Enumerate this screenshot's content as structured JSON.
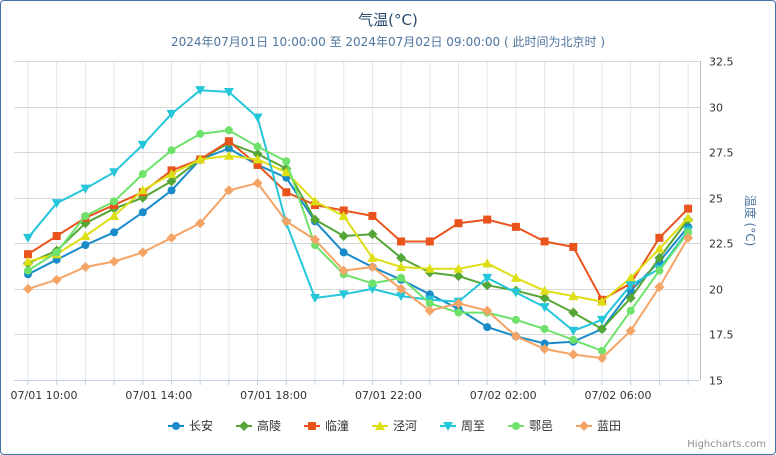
{
  "chart_data": {
    "type": "line",
    "title": "气温(°C)",
    "subtitle": "2024年07月01日 10:00:00 至 2024年07月02日 09:00:00 ( 此时间为北京时 )",
    "ylabel": "温度 (°C)",
    "credits": "Highcharts.com",
    "ylim": [
      15,
      32.5
    ],
    "y_ticks": [
      "15",
      "17.5",
      "20",
      "22.5",
      "25",
      "27.5",
      "30",
      "32.5"
    ],
    "x": [
      "07/01 10:00",
      "07/01 11:00",
      "07/01 12:00",
      "07/01 13:00",
      "07/01 14:00",
      "07/01 15:00",
      "07/01 16:00",
      "07/01 17:00",
      "07/01 18:00",
      "07/01 19:00",
      "07/01 20:00",
      "07/01 21:00",
      "07/01 22:00",
      "07/01 23:00",
      "07/02 00:00",
      "07/02 01:00",
      "07/02 02:00",
      "07/02 03:00",
      "07/02 04:00",
      "07/02 05:00",
      "07/02 06:00",
      "07/02 07:00",
      "07/02 08:00",
      "07/02 09:00"
    ],
    "x_tick_labels": [
      "07/01 10:00",
      "07/01 14:00",
      "07/01 18:00",
      "07/01 22:00",
      "07/02 02:00",
      "07/02 06:00"
    ],
    "grid": true,
    "legend_position": "bottom-center",
    "series": [
      {
        "name": "长安",
        "color": "#1a8bc9",
        "marker": "circle",
        "values": [
          20.8,
          21.6,
          22.4,
          23.1,
          24.2,
          25.4,
          27.1,
          27.7,
          26.8,
          26.1,
          23.7,
          22.0,
          21.2,
          20.5,
          19.7,
          18.9,
          17.9,
          17.4,
          17.0,
          17.1,
          17.8,
          19.9,
          21.5,
          23.4
        ]
      },
      {
        "name": "高陵",
        "color": "#55a636",
        "marker": "diamond",
        "values": [
          21.4,
          22.1,
          23.6,
          24.4,
          25.0,
          25.9,
          27.1,
          28.0,
          27.4,
          26.6,
          23.8,
          22.9,
          23.0,
          21.7,
          20.9,
          20.7,
          20.2,
          19.9,
          19.5,
          18.7,
          17.8,
          19.5,
          21.7,
          23.8
        ]
      },
      {
        "name": "临潼",
        "color": "#e8541c",
        "marker": "square",
        "values": [
          21.9,
          22.9,
          23.9,
          24.6,
          25.3,
          26.5,
          27.1,
          28.1,
          26.8,
          25.3,
          24.6,
          24.3,
          24.0,
          22.6,
          22.6,
          23.6,
          23.8,
          23.4,
          22.6,
          22.3,
          19.4,
          20.3,
          22.8,
          24.4
        ]
      },
      {
        "name": "泾河",
        "color": "#dede14",
        "marker": "triangle",
        "values": [
          21.5,
          21.9,
          22.9,
          24.0,
          25.4,
          26.3,
          27.1,
          27.3,
          27.1,
          26.4,
          24.8,
          24.0,
          21.7,
          21.2,
          21.1,
          21.1,
          21.4,
          20.6,
          19.9,
          19.6,
          19.3,
          20.6,
          22.2,
          23.9
        ]
      },
      {
        "name": "周至",
        "color": "#26c6da",
        "marker": "triangle-down",
        "values": [
          22.8,
          24.7,
          25.5,
          26.4,
          27.9,
          29.6,
          30.9,
          30.8,
          29.4,
          23.6,
          19.5,
          19.7,
          20.0,
          19.6,
          19.4,
          19.3,
          20.6,
          19.8,
          19.0,
          17.7,
          18.3,
          20.2,
          21.1,
          23.2
        ]
      },
      {
        "name": "鄠邑",
        "color": "#6fe26c",
        "marker": "circle",
        "values": [
          21.0,
          22.0,
          24.0,
          24.8,
          26.3,
          27.6,
          28.5,
          28.7,
          27.8,
          27.0,
          22.4,
          20.8,
          20.3,
          20.6,
          19.2,
          18.7,
          18.7,
          18.3,
          17.8,
          17.2,
          16.6,
          18.8,
          21.0,
          23.1
        ]
      },
      {
        "name": "蓝田",
        "color": "#f4a466",
        "marker": "diamond",
        "values": [
          20.0,
          20.5,
          21.2,
          21.5,
          22.0,
          22.8,
          23.6,
          25.4,
          25.8,
          23.7,
          22.7,
          21.0,
          21.2,
          20.0,
          18.8,
          19.2,
          18.8,
          17.4,
          16.7,
          16.4,
          16.2,
          17.7,
          20.1,
          22.8
        ]
      }
    ]
  }
}
